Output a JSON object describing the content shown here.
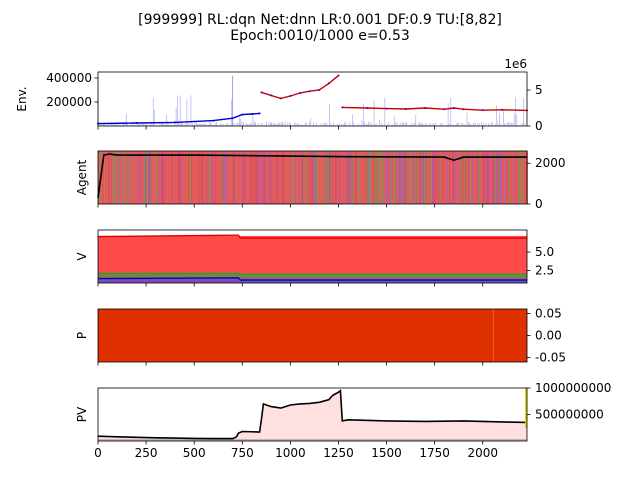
{
  "title_line1": "[999999] RL:dqn Net:dnn LR:0.001 DF:0.9 TU:[8,82]",
  "title_line2": "Epoch:0010/1000 e=0.53",
  "x_ticks": [
    "0",
    "250",
    "500",
    "750",
    "1000",
    "1250",
    "1500",
    "1750",
    "2000"
  ],
  "chart_data": [
    {
      "type": "line",
      "ylabel": "Env.",
      "y_ticks_left": [
        "200000",
        "400000"
      ],
      "y_ticks_right": [
        "0",
        "5"
      ],
      "right_axis_offset": "1e6",
      "xlim": [
        0,
        2230
      ],
      "series": [
        {
          "color": "#cc0000",
          "x": [
            850,
            900,
            950,
            1000,
            1050,
            1100,
            1150,
            1200,
            1250
          ],
          "values": [
            280000,
            255000,
            230000,
            250000,
            275000,
            290000,
            300000,
            355000,
            420000
          ]
        },
        {
          "color": "#cc0000",
          "x": [
            1270,
            1400,
            1500,
            1600,
            1700,
            1800,
            1850,
            1900,
            2000,
            2100,
            2230
          ],
          "values": [
            155000,
            150000,
            145000,
            142000,
            150000,
            140000,
            150000,
            140000,
            132000,
            135000,
            130000
          ]
        },
        {
          "color": "#0000cc",
          "x": [
            0,
            200,
            400,
            600,
            700,
            750,
            800,
            840
          ],
          "values": [
            20000,
            25000,
            30000,
            45000,
            65000,
            95000,
            100000,
            105000
          ]
        }
      ]
    },
    {
      "type": "line",
      "ylabel": "Agent",
      "y_ticks_right": [
        "0",
        "2000"
      ],
      "xlim": [
        0,
        2230
      ],
      "series": [
        {
          "name": "",
          "color": "#000000",
          "x": [
            0,
            30,
            60,
            100,
            500,
            1000,
            1300,
            1800,
            1850,
            1900,
            2230
          ],
          "values": [
            300,
            2400,
            2450,
            2400,
            2400,
            2350,
            2320,
            2300,
            2150,
            2300,
            2300
          ]
        }
      ]
    },
    {
      "type": "line",
      "ylabel": "V",
      "y_ticks_right": [
        "2.5",
        "5.0"
      ],
      "xlim": [
        0,
        2230
      ],
      "series": [
        {
          "color": "#dd0000",
          "x": [
            0,
            700,
            730,
            740,
            2230
          ],
          "values": [
            7.1,
            7.3,
            7.3,
            6.9,
            6.9
          ]
        },
        {
          "color": "#2ca02c",
          "x": [
            0,
            730,
            740,
            2230
          ],
          "values": [
            2.1,
            2.1,
            2.0,
            2.0
          ]
        },
        {
          "color": "#0000cc",
          "x": [
            0,
            730,
            740,
            2230
          ],
          "values": [
            1.4,
            1.5,
            1.2,
            1.2
          ]
        }
      ]
    },
    {
      "type": "area",
      "ylabel": "P",
      "y_ticks_right": [
        "-0.05",
        "0.00",
        "0.05"
      ],
      "xlim": [
        0,
        2230
      ],
      "ylim": [
        -0.06,
        0.06
      ]
    },
    {
      "type": "line",
      "ylabel": "PV",
      "y_ticks_right": [
        "500000000",
        "1000000000"
      ],
      "xlim": [
        0,
        2230
      ],
      "series": [
        {
          "color": "#000000",
          "x": [
            0,
            100,
            200,
            300,
            400,
            500,
            600,
            700,
            720,
            730,
            750,
            840,
            850,
            860,
            900,
            950,
            1000,
            1050,
            1100,
            1150,
            1200,
            1220,
            1250,
            1260,
            1270,
            1300,
            1500,
            1700,
            1900,
            2100,
            2230
          ],
          "values": [
            90000000,
            80000000,
            70000000,
            60000000,
            55000000,
            50000000,
            45000000,
            45000000,
            80000000,
            150000000,
            180000000,
            170000000,
            420000000,
            700000000,
            650000000,
            620000000,
            680000000,
            700000000,
            710000000,
            730000000,
            780000000,
            860000000,
            920000000,
            950000000,
            380000000,
            400000000,
            380000000,
            370000000,
            380000000,
            360000000,
            350000000
          ]
        }
      ]
    }
  ]
}
